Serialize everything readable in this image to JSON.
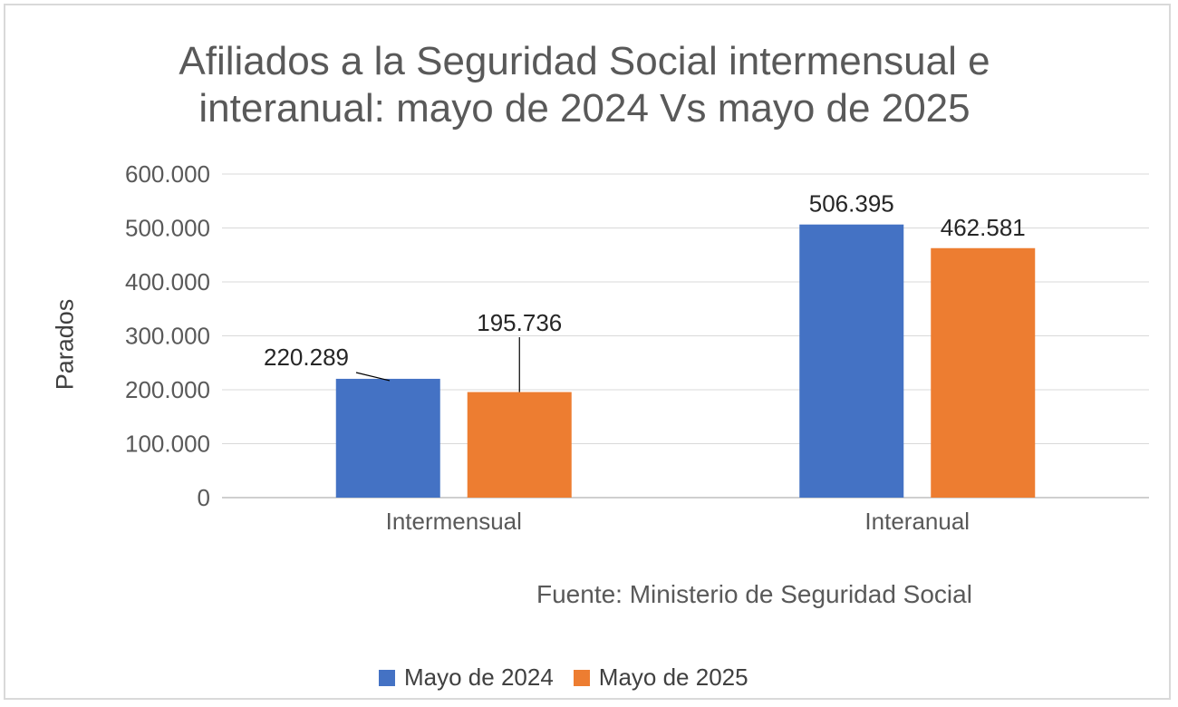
{
  "chart_data": {
    "type": "bar",
    "title_line1": "Afiliados a la Seguridad Social intermensual e",
    "title_line2": "interanual: mayo de 2024 Vs mayo de 2025",
    "xlabel": "",
    "ylabel": "Parados",
    "categories": [
      "Intermensual",
      "Interanual"
    ],
    "series": [
      {
        "name": "Mayo de 2024",
        "color": "#4472c4",
        "values": [
          220289,
          506395
        ],
        "labels": [
          "220.289",
          "506.395"
        ]
      },
      {
        "name": "Mayo de 2025",
        "color": "#ed7d31",
        "values": [
          195736,
          462581
        ],
        "labels": [
          "195.736",
          "462.581"
        ]
      }
    ],
    "ylim": [
      0,
      600000
    ],
    "yticks": [
      0,
      100000,
      200000,
      300000,
      400000,
      500000,
      600000
    ],
    "ytick_labels": [
      "0",
      "100.000",
      "200.000",
      "300.000",
      "400.000",
      "500.000",
      "600.000"
    ],
    "grid": true,
    "legend_position": "bottom",
    "source": "Fuente: Ministerio de Seguridad Social"
  }
}
